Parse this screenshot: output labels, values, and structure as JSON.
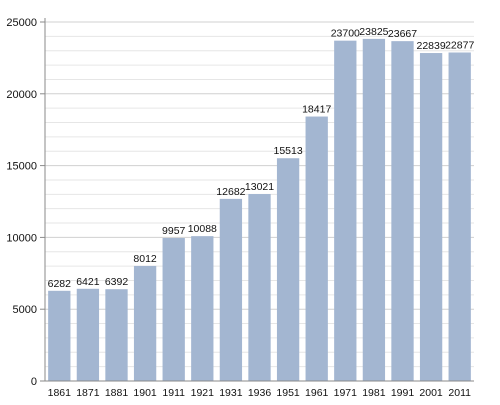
{
  "colors": {
    "bar": "#a3b6d1",
    "grid": "#d0d0d0",
    "axis": "#8a8a8a",
    "text": "#111111"
  },
  "chart_data": {
    "type": "bar",
    "title": "",
    "xlabel": "",
    "ylabel": "",
    "categories": [
      "1861",
      "1871",
      "1881",
      "1901",
      "1911",
      "1921",
      "1931",
      "1936",
      "1951",
      "1961",
      "1971",
      "1981",
      "1991",
      "2001",
      "2011"
    ],
    "values": [
      6282,
      6421,
      6392,
      8012,
      9957,
      10088,
      12682,
      13021,
      15513,
      18417,
      23700,
      23825,
      23667,
      22839,
      22877
    ],
    "data_labels": [
      "6282",
      "6421",
      "6392",
      "8012",
      "9957",
      "10088",
      "12682",
      "13021",
      "15513",
      "18417",
      "23700",
      "23825",
      "23667",
      "22839",
      "22877"
    ],
    "ylim": [
      0,
      25000
    ],
    "y_ticks": [
      0,
      5000,
      10000,
      15000,
      20000,
      25000
    ],
    "y_tick_labels": [
      "0",
      "5000",
      "10000",
      "15000",
      "20000",
      "25000"
    ],
    "grid": true,
    "legend": "none"
  }
}
